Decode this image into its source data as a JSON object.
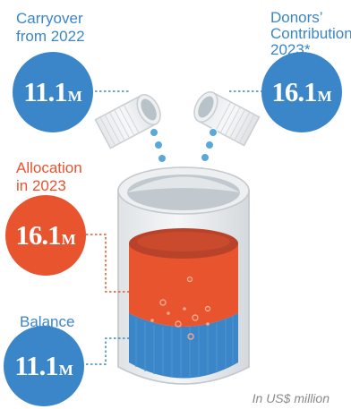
{
  "carryover": {
    "label_line1": "Carryover",
    "label_line2": "from 2022",
    "value": "11.1",
    "unit": "M"
  },
  "donors": {
    "label_line1": "Donors’",
    "label_line2": "Contribution",
    "label_line3": "2023*",
    "value": "16.1",
    "unit": "M"
  },
  "allocation": {
    "label_line1": "Allocation",
    "label_line2": "in 2023",
    "value": "16.1",
    "unit": "M"
  },
  "balance": {
    "label_line1": "Balance",
    "value": "11.1",
    "unit": "M"
  },
  "footnote": "In US$ million",
  "colors": {
    "blue": "#3a86c8",
    "orange": "#e8542e",
    "gray": "#d9dde0"
  }
}
